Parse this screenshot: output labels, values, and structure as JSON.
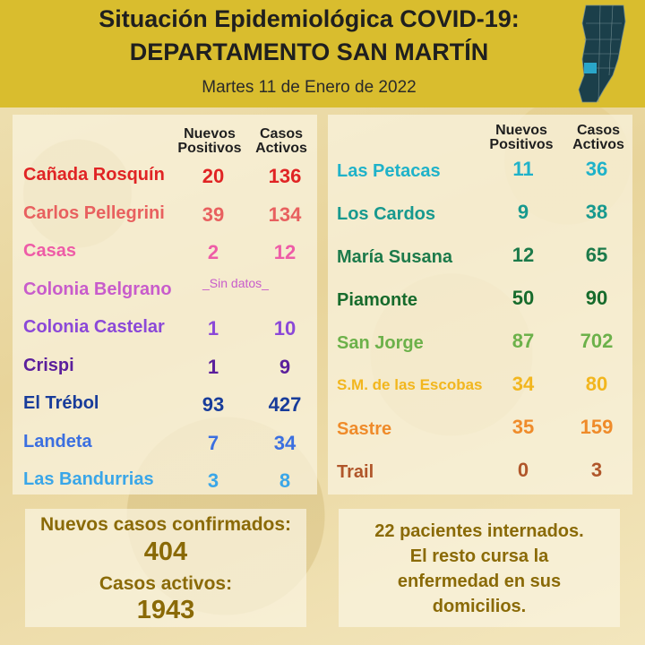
{
  "header": {
    "title_line1": "Situación Epidemiológica COVID-19:",
    "title_line2": "DEPARTAMENTO SAN MARTÍN",
    "date": "Martes 11 de Enero de 2022"
  },
  "columns": {
    "nuevos_line1": "Nuevos",
    "nuevos_line2": "Positivos",
    "casos_line1": "Casos",
    "casos_line2": "Activos"
  },
  "left_rows": [
    {
      "name": "Cañada Rosquín",
      "nuevos": "20",
      "activos": "136",
      "color": "#e02424"
    },
    {
      "name": "Carlos Pellegrini",
      "nuevos": "39",
      "activos": "134",
      "color": "#e8605f"
    },
    {
      "name": "Casas",
      "nuevos": "2",
      "activos": "12",
      "color": "#ee5ca7"
    },
    {
      "name": "Colonia Belgrano",
      "nodata": "_Sin datos_",
      "color": "#c85ccb"
    },
    {
      "name": "Colonia Castelar",
      "nuevos": "1",
      "activos": "10",
      "color": "#8b48d8"
    },
    {
      "name": "Crispi",
      "nuevos": "1",
      "activos": "9",
      "color": "#5b1f9c"
    },
    {
      "name": "El Trébol",
      "nuevos": "93",
      "activos": "427",
      "color": "#183c9a"
    },
    {
      "name": "Landeta",
      "nuevos": "7",
      "activos": "34",
      "color": "#3b6fe0"
    },
    {
      "name": "Las Bandurrias",
      "nuevos": "3",
      "activos": "8",
      "color": "#3aa6e8"
    }
  ],
  "right_rows": [
    {
      "name": "Las Petacas",
      "nuevos": "11",
      "activos": "36",
      "color": "#1fb2c9"
    },
    {
      "name": "Los Cardos",
      "nuevos": "9",
      "activos": "38",
      "color": "#17998e"
    },
    {
      "name": "María Susana",
      "nuevos": "12",
      "activos": "65",
      "color": "#1c7a4a"
    },
    {
      "name": "Piamonte",
      "nuevos": "50",
      "activos": "90",
      "color": "#176b2c"
    },
    {
      "name": "San Jorge",
      "nuevos": "87",
      "activos": "702",
      "color": "#6cb14a"
    },
    {
      "name": "S.M. de las Escobas",
      "nuevos": "34",
      "activos": "80",
      "color": "#f2b61e"
    },
    {
      "name": "Sastre",
      "nuevos": "35",
      "activos": "159",
      "color": "#ef8b2a"
    },
    {
      "name": "Trail",
      "nuevos": "0",
      "activos": "3",
      "color": "#b0562a"
    }
  ],
  "summary": {
    "nuevos_label": "Nuevos casos confirmados:",
    "nuevos_value": "404",
    "activos_label": "Casos activos:",
    "activos_value": "1943",
    "internados_line1": "22 pacientes internados.",
    "internados_line2": "El resto cursa la",
    "internados_line3": "enfermedad en sus",
    "internados_line4": "domicilios."
  },
  "colors": {
    "header_bg": "#d9bd2e",
    "summary_text": "#8a6a07",
    "map_fill": "#1b3f4a",
    "map_highlight": "#2aa6c9"
  },
  "icons": [
    "santa-fe-province-map-icon"
  ]
}
